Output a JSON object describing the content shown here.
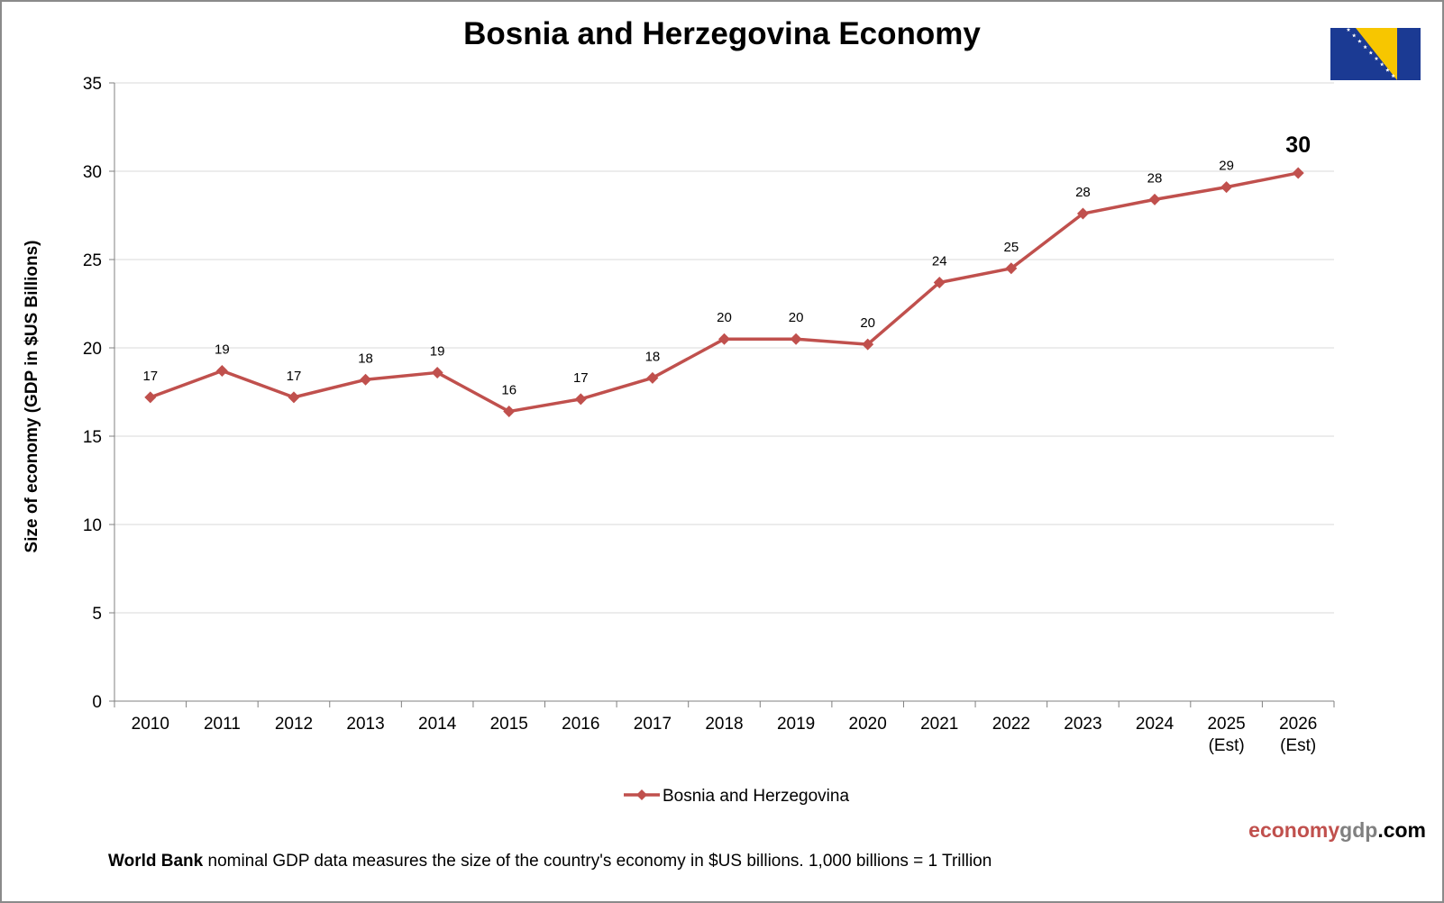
{
  "chart_data": {
    "type": "line",
    "title": "Bosnia and Herzegovina Economy",
    "ylabel": "Size of economy (GDP in $US Billions)",
    "xlabel": "",
    "ylim": [
      0,
      35
    ],
    "yticks": [
      0,
      5,
      10,
      15,
      20,
      25,
      30,
      35
    ],
    "grid": true,
    "legend_position": "bottom",
    "categories": [
      [
        "2010"
      ],
      [
        "2011"
      ],
      [
        "2012"
      ],
      [
        "2013"
      ],
      [
        "2014"
      ],
      [
        "2015"
      ],
      [
        "2016"
      ],
      [
        "2017"
      ],
      [
        "2018"
      ],
      [
        "2019"
      ],
      [
        "2020"
      ],
      [
        "2021"
      ],
      [
        "2022"
      ],
      [
        "2023"
      ],
      [
        "2024"
      ],
      [
        "2025",
        "(Est)"
      ],
      [
        "2026",
        "(Est)"
      ]
    ],
    "series": [
      {
        "name": "Bosnia and Herzegovina",
        "color": "#c0504d",
        "values": [
          17.2,
          18.7,
          17.2,
          18.2,
          18.6,
          16.4,
          17.1,
          18.3,
          20.5,
          20.5,
          20.2,
          23.7,
          24.5,
          27.6,
          28.4,
          29.1,
          29.9
        ],
        "data_labels": [
          "17",
          "19",
          "17",
          "18",
          "19",
          "16",
          "17",
          "18",
          "20",
          "20",
          "20",
          "24",
          "25",
          "28",
          "28",
          "29",
          "30"
        ],
        "highlight_last_label": true
      }
    ]
  },
  "brand": {
    "part1": "economy",
    "part2": "gdp",
    "part3": ".com"
  },
  "footnote": {
    "bold": "World Bank",
    "text": " nominal GDP data  measures the size of the country's economy in $US billions.  1,000 billions = 1 Trillion"
  },
  "flag": {
    "blue": "#1b3a93",
    "yellow": "#f7c600",
    "star": "#ffffff",
    "icon": "bosnia-flag-icon"
  }
}
